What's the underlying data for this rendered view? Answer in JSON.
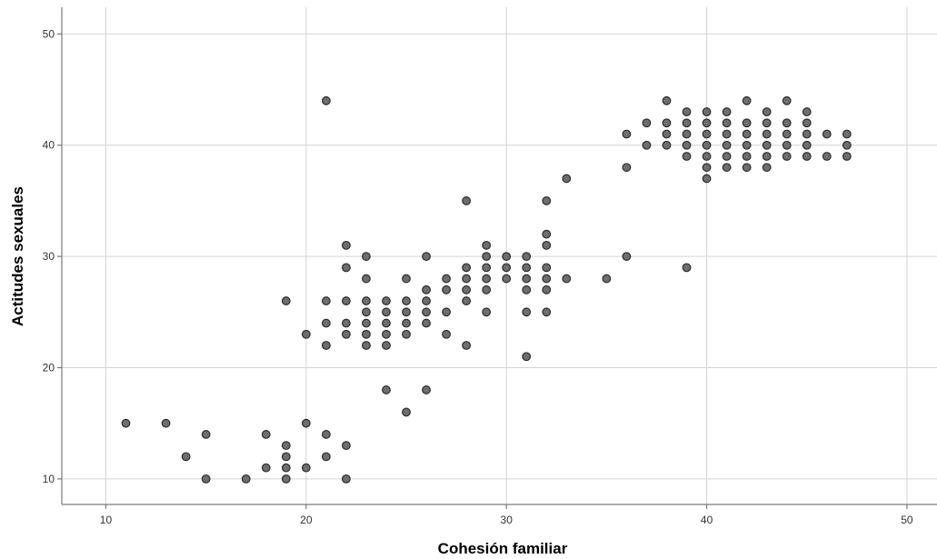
{
  "chart_data": {
    "type": "scatter",
    "xlabel": "Cohesión familiar",
    "ylabel": "Actitudes sexuales",
    "xlim": [
      7.8,
      51.5
    ],
    "ylim": [
      7.7,
      52.4
    ],
    "x_ticks": [
      10,
      20,
      30,
      40,
      50
    ],
    "y_ticks": [
      10,
      20,
      30,
      40,
      50
    ],
    "grid": true,
    "legend": "none",
    "marker_color": "#6e6e6e",
    "marker_edge_color": "#2b2b2b",
    "points": [
      [
        11,
        15
      ],
      [
        13,
        15
      ],
      [
        14,
        12
      ],
      [
        15,
        14
      ],
      [
        15,
        10
      ],
      [
        17,
        10
      ],
      [
        18,
        14
      ],
      [
        18,
        11
      ],
      [
        19,
        13
      ],
      [
        19,
        12
      ],
      [
        19,
        11
      ],
      [
        19,
        10
      ],
      [
        19,
        26
      ],
      [
        20,
        15
      ],
      [
        20,
        11
      ],
      [
        20,
        23
      ],
      [
        21,
        44
      ],
      [
        21,
        26
      ],
      [
        21,
        24
      ],
      [
        21,
        22
      ],
      [
        21,
        14
      ],
      [
        21,
        12
      ],
      [
        22,
        31
      ],
      [
        22,
        29
      ],
      [
        22,
        26
      ],
      [
        22,
        24
      ],
      [
        22,
        23
      ],
      [
        22,
        13
      ],
      [
        22,
        10
      ],
      [
        23,
        30
      ],
      [
        23,
        28
      ],
      [
        23,
        26
      ],
      [
        23,
        25
      ],
      [
        23,
        24
      ],
      [
        23,
        23
      ],
      [
        23,
        22
      ],
      [
        24,
        26
      ],
      [
        24,
        25
      ],
      [
        24,
        24
      ],
      [
        24,
        23
      ],
      [
        24,
        22
      ],
      [
        24,
        18
      ],
      [
        25,
        28
      ],
      [
        25,
        26
      ],
      [
        25,
        25
      ],
      [
        25,
        24
      ],
      [
        25,
        23
      ],
      [
        25,
        16
      ],
      [
        26,
        30
      ],
      [
        26,
        27
      ],
      [
        26,
        26
      ],
      [
        26,
        25
      ],
      [
        26,
        24
      ],
      [
        26,
        18
      ],
      [
        27,
        28
      ],
      [
        27,
        27
      ],
      [
        27,
        25
      ],
      [
        27,
        23
      ],
      [
        28,
        35
      ],
      [
        28,
        29
      ],
      [
        28,
        28
      ],
      [
        28,
        27
      ],
      [
        28,
        26
      ],
      [
        28,
        22
      ],
      [
        29,
        31
      ],
      [
        29,
        30
      ],
      [
        29,
        29
      ],
      [
        29,
        28
      ],
      [
        29,
        27
      ],
      [
        29,
        25
      ],
      [
        30,
        30
      ],
      [
        30,
        29
      ],
      [
        30,
        28
      ],
      [
        31,
        30
      ],
      [
        31,
        29
      ],
      [
        31,
        28
      ],
      [
        31,
        27
      ],
      [
        31,
        25
      ],
      [
        31,
        21
      ],
      [
        32,
        35
      ],
      [
        32,
        32
      ],
      [
        32,
        31
      ],
      [
        32,
        29
      ],
      [
        32,
        28
      ],
      [
        32,
        27
      ],
      [
        32,
        25
      ],
      [
        33,
        37
      ],
      [
        33,
        28
      ],
      [
        35,
        28
      ],
      [
        36,
        41
      ],
      [
        36,
        38
      ],
      [
        36,
        30
      ],
      [
        37,
        42
      ],
      [
        37,
        40
      ],
      [
        38,
        44
      ],
      [
        38,
        42
      ],
      [
        38,
        41
      ],
      [
        38,
        40
      ],
      [
        39,
        43
      ],
      [
        39,
        42
      ],
      [
        39,
        41
      ],
      [
        39,
        40
      ],
      [
        39,
        39
      ],
      [
        39,
        29
      ],
      [
        40,
        43
      ],
      [
        40,
        42
      ],
      [
        40,
        41
      ],
      [
        40,
        40
      ],
      [
        40,
        39
      ],
      [
        40,
        38
      ],
      [
        40,
        37
      ],
      [
        41,
        43
      ],
      [
        41,
        42
      ],
      [
        41,
        41
      ],
      [
        41,
        40
      ],
      [
        41,
        39
      ],
      [
        41,
        38
      ],
      [
        42,
        44
      ],
      [
        42,
        42
      ],
      [
        42,
        41
      ],
      [
        42,
        40
      ],
      [
        42,
        39
      ],
      [
        42,
        38
      ],
      [
        43,
        43
      ],
      [
        43,
        42
      ],
      [
        43,
        41
      ],
      [
        43,
        40
      ],
      [
        43,
        39
      ],
      [
        43,
        38
      ],
      [
        44,
        44
      ],
      [
        44,
        42
      ],
      [
        44,
        41
      ],
      [
        44,
        40
      ],
      [
        44,
        39
      ],
      [
        45,
        43
      ],
      [
        45,
        42
      ],
      [
        45,
        41
      ],
      [
        45,
        40
      ],
      [
        45,
        39
      ],
      [
        46,
        41
      ],
      [
        46,
        39
      ],
      [
        47,
        41
      ],
      [
        47,
        40
      ],
      [
        47,
        39
      ]
    ]
  }
}
